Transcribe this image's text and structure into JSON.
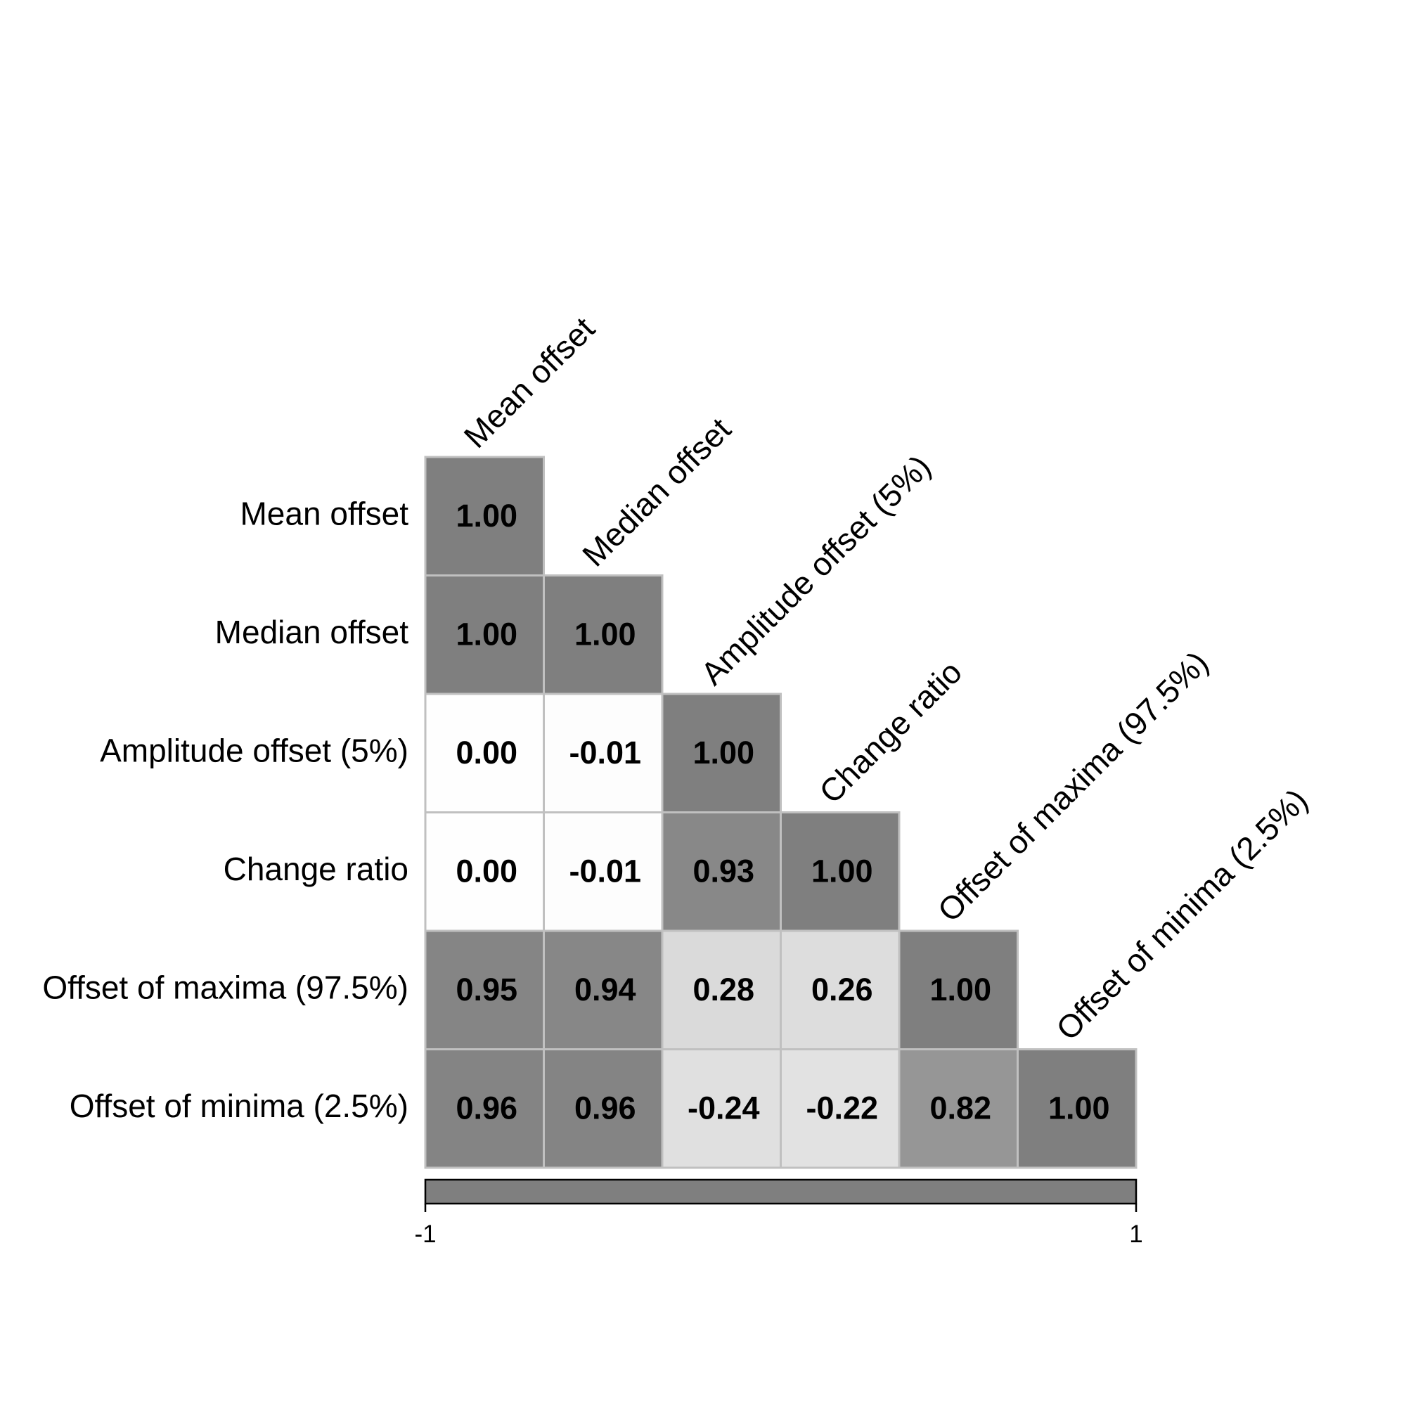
{
  "chart_data": {
    "type": "heatmap",
    "variables": [
      "Mean offset",
      "Median offset",
      "Amplitude offset (5%)",
      "Change ratio",
      "Offset of maxima (97.5%)",
      "Offset of minima (2.5%)"
    ],
    "matrix_lower": [
      [
        1.0
      ],
      [
        1.0,
        1.0
      ],
      [
        0.0,
        -0.01,
        1.0
      ],
      [
        0.0,
        -0.01,
        0.93,
        1.0
      ],
      [
        0.95,
        0.94,
        0.28,
        0.26,
        1.0
      ],
      [
        0.96,
        0.96,
        -0.24,
        -0.22,
        0.82,
        1.0
      ]
    ],
    "cell_labels": [
      [
        "1.00"
      ],
      [
        "1.00",
        "1.00"
      ],
      [
        "0.00",
        "-0.01",
        "1.00"
      ],
      [
        "0.00",
        "-0.01",
        "0.93",
        "1.00"
      ],
      [
        "0.95",
        "0.94",
        "0.28",
        "0.26",
        "1.00"
      ],
      [
        "0.96",
        "0.96",
        "-0.24",
        "-0.22",
        "0.82",
        "1.00"
      ]
    ],
    "color_scale": {
      "range": [
        -1,
        1
      ],
      "tick_labels": [
        "-1",
        "1"
      ],
      "colors": [
        "#7f7f7f",
        "#fefefe",
        "#7f7f7f"
      ]
    },
    "legend": "colorbar-bottom",
    "cell_border_color": "#c0c0c0",
    "title": "",
    "xlabel": "",
    "ylabel": ""
  }
}
